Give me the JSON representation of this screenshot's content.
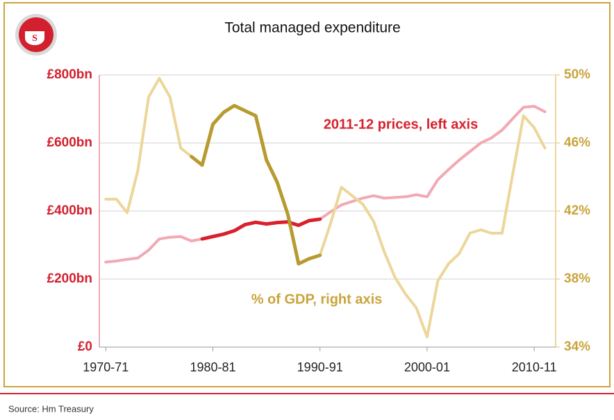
{
  "chart_data": {
    "type": "line",
    "title": "Total managed expenditure",
    "source": "Source: Hm Treasury",
    "x": [
      1970,
      1971,
      1972,
      1973,
      1974,
      1975,
      1976,
      1977,
      1978,
      1979,
      1980,
      1981,
      1982,
      1983,
      1984,
      1985,
      1986,
      1987,
      1988,
      1989,
      1990,
      1991,
      1992,
      1993,
      1994,
      1995,
      1996,
      1997,
      1998,
      1999,
      2000,
      2001,
      2002,
      2003,
      2004,
      2005,
      2006,
      2007,
      2008,
      2009,
      2010,
      2011
    ],
    "xlim": [
      1969.4,
      2012
    ],
    "xticks": [
      {
        "value": 1970,
        "label": "1970-71"
      },
      {
        "value": 1980,
        "label": "1980-81"
      },
      {
        "value": 1990,
        "label": "1990-91"
      },
      {
        "value": 2000,
        "label": "2000-01"
      },
      {
        "value": 2010,
        "label": "2010-11"
      }
    ],
    "ylim": [
      0,
      800
    ],
    "yticks": [
      {
        "value": 0,
        "label": "£0"
      },
      {
        "value": 200,
        "label": "£200bn"
      },
      {
        "value": 400,
        "label": "£400bn"
      },
      {
        "value": 600,
        "label": "£600bn"
      },
      {
        "value": 800,
        "label": "£800bn"
      }
    ],
    "y2lim": [
      34,
      50
    ],
    "y2ticks": [
      {
        "value": 34,
        "label": "34%"
      },
      {
        "value": 38,
        "label": "38%"
      },
      {
        "value": 42,
        "label": "42%"
      },
      {
        "value": 46,
        "label": "46%"
      },
      {
        "value": 50,
        "label": "50%"
      }
    ],
    "grid": true,
    "series": [
      {
        "name": "2011-12 prices, left axis",
        "color": "#f2a9b4",
        "highlight_color": "#d9202c",
        "highlight_range": [
          1979,
          1990
        ],
        "values": [
          250,
          253,
          258,
          262,
          285,
          318,
          323,
          325,
          312,
          318,
          325,
          332,
          342,
          360,
          367,
          362,
          366,
          368,
          358,
          372,
          376,
          398,
          418,
          428,
          438,
          445,
          438,
          440,
          442,
          448,
          442,
          492,
          522,
          550,
          575,
          600,
          615,
          638,
          672,
          705,
          708,
          692
        ]
      },
      {
        "name": "% of GDP, right axis",
        "axis": "y2",
        "color": "#ecd699",
        "highlight_color": "#b89a30",
        "highlight_range": [
          1978,
          1990
        ],
        "values": [
          42.7,
          42.7,
          41.9,
          44.4,
          48.7,
          49.8,
          48.7,
          45.7,
          45.2,
          44.7,
          47.1,
          47.8,
          48.2,
          47.9,
          47.6,
          45.0,
          43.7,
          41.8,
          38.9,
          39.2,
          39.4,
          41.3,
          43.4,
          42.9,
          42.4,
          41.4,
          39.6,
          38.1,
          37.1,
          36.3,
          34.6,
          37.9,
          38.9,
          39.5,
          40.7,
          40.9,
          40.7,
          40.7,
          44.2,
          47.6,
          46.9,
          45.7
        ]
      }
    ]
  }
}
